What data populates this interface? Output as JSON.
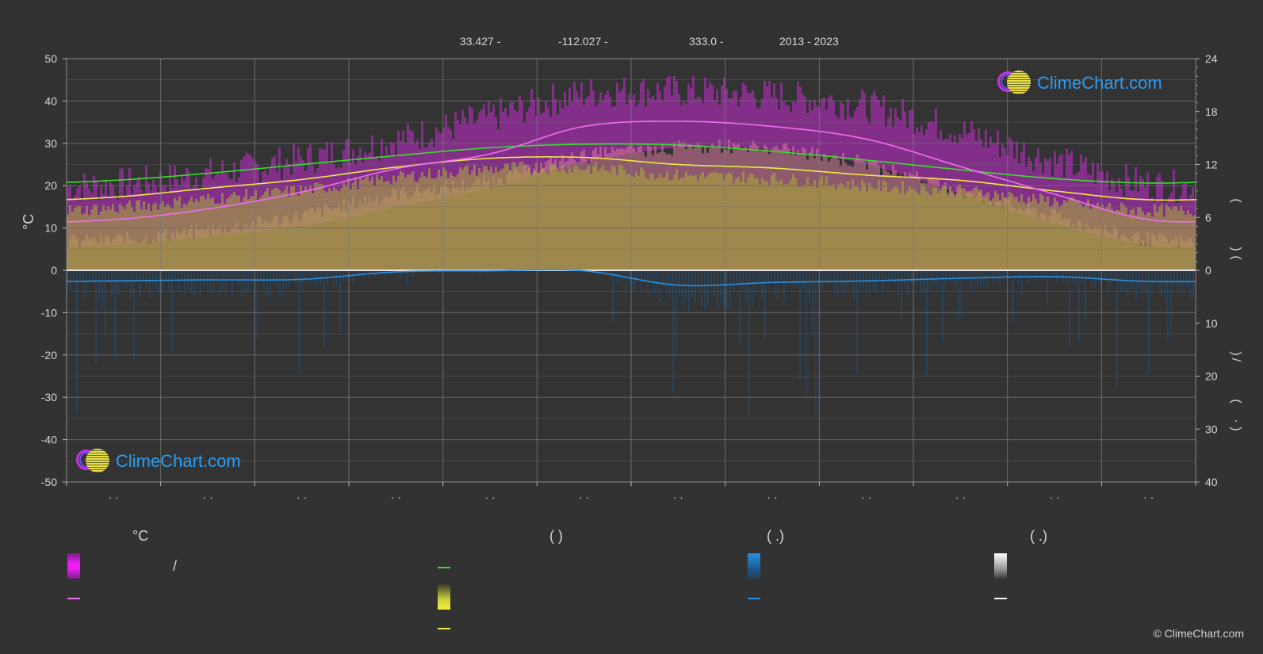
{
  "header": {
    "lat": "33.427 -",
    "lon": "-112.027 -",
    "elev": "333.0 -",
    "years": "2013 - 2023"
  },
  "axes": {
    "left_unit": "°C",
    "left_ticks": [
      "50",
      "40",
      "30",
      "20",
      "10",
      "0",
      "-10",
      "-20",
      "-30",
      "-40",
      "-50"
    ],
    "right_ticks_top": [
      "24",
      "18",
      "12",
      "6",
      "0"
    ],
    "right_ticks_bottom": [
      "10",
      "20",
      "30",
      "40"
    ],
    "right_label_glyphs": [
      "(",
      ")",
      "(",
      ")",
      "/",
      "(",
      "·",
      ")"
    ],
    "month_labels": [
      "· ·",
      "· ·",
      "· ·",
      "· ·",
      "· ·",
      "· ·",
      "· ·",
      "· ·",
      "· ·",
      "· ·",
      "· ·",
      "· ·"
    ]
  },
  "legend": {
    "col1_head": "°C",
    "col1_slash": "/",
    "col2_head": "(          )",
    "col3_head": "(   .)",
    "col4_head": "(   .)"
  },
  "logo_text": "ClimeChart.com",
  "copyright": "© ClimeChart.com",
  "colors": {
    "background": "#323232",
    "temp_max_band": "#c42bd1",
    "temp_band_pink": "#d8789a",
    "sunshine_band": "#a8a83a",
    "daylight_line": "#3ddc2e",
    "sunshine_line": "#f0e84a",
    "avg_temp_line": "#f06ef0",
    "precip_line": "#2b8fe0",
    "precip_bars": "#1f4f78"
  },
  "chart_data": {
    "type": "area",
    "x_unit": "month",
    "x": [
      1,
      2,
      3,
      4,
      5,
      6,
      7,
      8,
      9,
      10,
      11,
      12
    ],
    "ylim_left": [
      -50,
      50
    ],
    "ylim_right_hours": [
      0,
      24
    ],
    "ylim_right_precip_mm": [
      0,
      40
    ],
    "grid": true,
    "series": [
      {
        "key": "avg_max_temp",
        "axis": "left",
        "values": [
          19.5,
          22,
          25.5,
          30,
          35.5,
          41,
          41.5,
          40.5,
          38,
          32,
          25,
          19.5
        ]
      },
      {
        "key": "avg_min_temp",
        "axis": "left",
        "values": [
          6,
          8,
          10.5,
          15,
          19.5,
          25.5,
          29,
          28.5,
          25,
          18,
          11,
          6
        ]
      },
      {
        "key": "avg_temp",
        "axis": "left",
        "values": [
          12,
          14.5,
          18.5,
          24,
          27.5,
          34,
          35.2,
          34,
          31,
          24.5,
          18,
          12
        ]
      },
      {
        "key": "daylight_hours",
        "axis": "right_hours",
        "values": [
          10.2,
          11.0,
          12.0,
          13.0,
          13.9,
          14.3,
          14.2,
          13.5,
          12.5,
          11.4,
          10.4,
          9.9
        ]
      },
      {
        "key": "sunshine_hours",
        "axis": "right_hours",
        "values": [
          8.3,
          9.3,
          10.3,
          11.7,
          12.7,
          12.8,
          12.0,
          11.6,
          10.8,
          10.2,
          9.0,
          8.0
        ]
      },
      {
        "key": "precip_mm",
        "axis": "right_precip",
        "values": [
          2.0,
          1.8,
          1.7,
          0.3,
          0.1,
          0.1,
          2.8,
          2.3,
          2.0,
          1.5,
          1.2,
          2.1
        ]
      }
    ]
  }
}
